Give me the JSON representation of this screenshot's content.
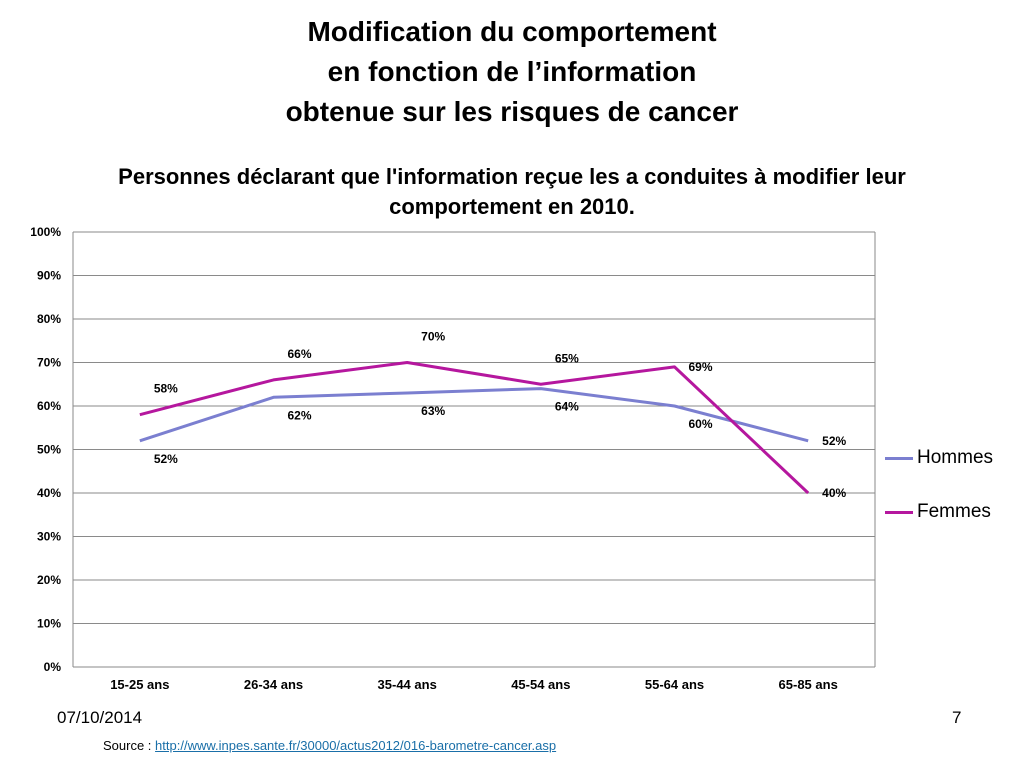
{
  "slide": {
    "title_lines": [
      "Modification du comportement",
      "en fonction de l’information",
      "obtenue sur les risques de cancer"
    ],
    "date": "07/10/2014",
    "page_number": "7",
    "source_label": "Source :",
    "source_link": "http://www.inpes.sante.fr/30000/actus2012/016-barometre-cancer.asp"
  },
  "chart_data": {
    "type": "line",
    "title": "Personnes déclarant que l'information reçue les a conduites à modifier leur comportement en 2010.",
    "xlabel": "",
    "ylabel": "",
    "categories": [
      "15-25 ans",
      "26-34 ans",
      "35-44 ans",
      "45-54 ans",
      "55-64 ans",
      "65-85 ans"
    ],
    "y_ticks": [
      "0%",
      "10%",
      "20%",
      "30%",
      "40%",
      "50%",
      "60%",
      "70%",
      "80%",
      "90%",
      "100%"
    ],
    "ylim": [
      0,
      100
    ],
    "grid": true,
    "legend_position": "right",
    "series": [
      {
        "name": "Hommes",
        "color": "#7b7fd0",
        "values": [
          52,
          62,
          63,
          64,
          60,
          52
        ],
        "labels": [
          "52%",
          "62%",
          "63%",
          "64%",
          "60%",
          "52%"
        ]
      },
      {
        "name": "Femmes",
        "color": "#b5179e",
        "values": [
          58,
          66,
          70,
          65,
          69,
          40
        ],
        "labels": [
          "58%",
          "66%",
          "70%",
          "65%",
          "69%",
          "40%"
        ]
      }
    ]
  }
}
